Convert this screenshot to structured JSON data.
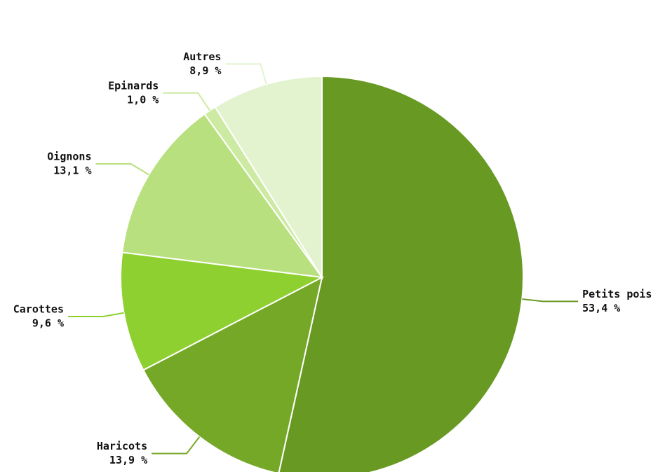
{
  "chart_data": {
    "type": "pie",
    "categories": [
      "Petits pois",
      "Haricots",
      "Carottes",
      "Oignons",
      "Epinards",
      "Autres"
    ],
    "values": [
      53.4,
      13.9,
      9.6,
      13.1,
      1.0,
      8.9
    ],
    "value_labels": [
      "53,4 %",
      "13,9 %",
      "9,6 %",
      "13,1 %",
      "1,0 %",
      "8,9 %"
    ],
    "colors": [
      "#689a23",
      "#76a828",
      "#8fd031",
      "#b8e07e",
      "#cdeaa3",
      "#e3f3d0"
    ]
  }
}
